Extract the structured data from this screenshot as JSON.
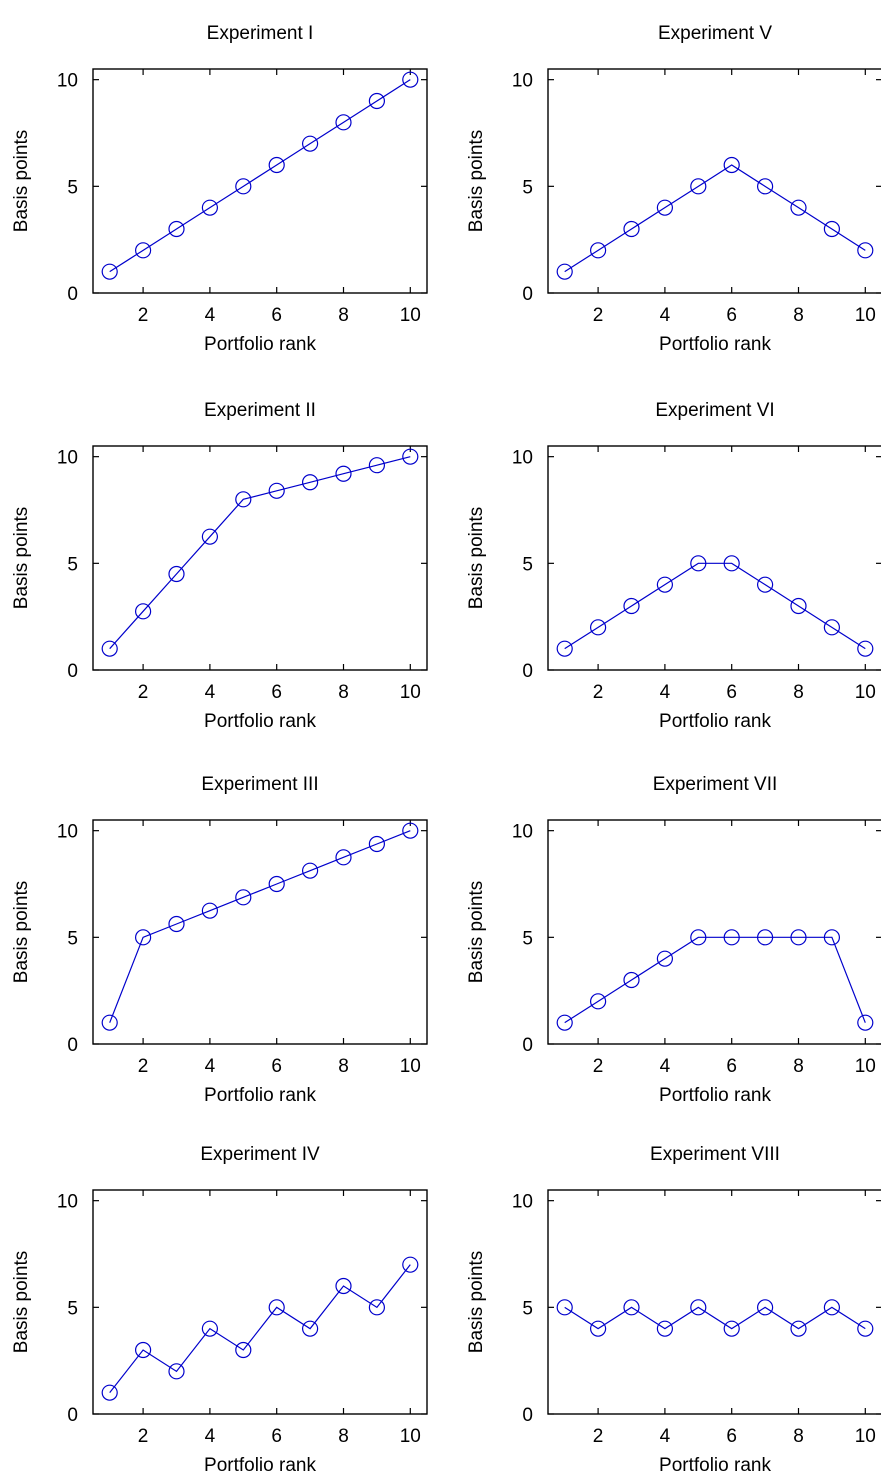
{
  "chart_data": [
    {
      "type": "line",
      "title": "Experiment I",
      "xlabel": "Portfolio rank",
      "ylabel": "Basis points",
      "xlim": [
        0.5,
        10.5
      ],
      "ylim": [
        0,
        10.5
      ],
      "xticks": [
        2,
        4,
        6,
        8,
        10
      ],
      "yticks": [
        0,
        5,
        10
      ],
      "x": [
        1,
        2,
        3,
        4,
        5,
        6,
        7,
        8,
        9,
        10
      ],
      "series": [
        {
          "values": [
            1,
            2,
            3,
            4,
            5,
            6,
            7,
            8,
            9,
            10
          ]
        }
      ]
    },
    {
      "type": "line",
      "title": "Experiment V",
      "xlabel": "Portfolio rank",
      "ylabel": "Basis points",
      "xlim": [
        0.5,
        10.5
      ],
      "ylim": [
        0,
        10.5
      ],
      "xticks": [
        2,
        4,
        6,
        8,
        10
      ],
      "yticks": [
        0,
        5,
        10
      ],
      "x": [
        1,
        2,
        3,
        4,
        5,
        6,
        7,
        8,
        9,
        10
      ],
      "series": [
        {
          "values": [
            1,
            2,
            3,
            4,
            5,
            6,
            5,
            4,
            3,
            2
          ]
        }
      ]
    },
    {
      "type": "line",
      "title": "Experiment II",
      "xlabel": "Portfolio rank",
      "ylabel": "Basis points",
      "xlim": [
        0.5,
        10.5
      ],
      "ylim": [
        0,
        10.5
      ],
      "xticks": [
        2,
        4,
        6,
        8,
        10
      ],
      "yticks": [
        0,
        5,
        10
      ],
      "x": [
        1,
        2,
        3,
        4,
        5,
        6,
        7,
        8,
        9,
        10
      ],
      "series": [
        {
          "values": [
            1,
            2.75,
            4.5,
            6.25,
            8,
            8.4,
            8.8,
            9.2,
            9.6,
            10
          ]
        }
      ]
    },
    {
      "type": "line",
      "title": "Experiment VI",
      "xlabel": "Portfolio rank",
      "ylabel": "Basis points",
      "xlim": [
        0.5,
        10.5
      ],
      "ylim": [
        0,
        10.5
      ],
      "xticks": [
        2,
        4,
        6,
        8,
        10
      ],
      "yticks": [
        0,
        5,
        10
      ],
      "x": [
        1,
        2,
        3,
        4,
        5,
        6,
        7,
        8,
        9,
        10
      ],
      "series": [
        {
          "values": [
            1,
            2,
            3,
            4,
            5,
            5,
            4,
            3,
            2,
            1
          ]
        }
      ]
    },
    {
      "type": "line",
      "title": "Experiment III",
      "xlabel": "Portfolio rank",
      "ylabel": "Basis points",
      "xlim": [
        0.5,
        10.5
      ],
      "ylim": [
        0,
        10.5
      ],
      "xticks": [
        2,
        4,
        6,
        8,
        10
      ],
      "yticks": [
        0,
        5,
        10
      ],
      "x": [
        1,
        2,
        3,
        4,
        5,
        6,
        7,
        8,
        9,
        10
      ],
      "series": [
        {
          "values": [
            1,
            5,
            5.625,
            6.25,
            6.875,
            7.5,
            8.125,
            8.75,
            9.375,
            10
          ]
        }
      ]
    },
    {
      "type": "line",
      "title": "Experiment VII",
      "xlabel": "Portfolio rank",
      "ylabel": "Basis points",
      "xlim": [
        0.5,
        10.5
      ],
      "ylim": [
        0,
        10.5
      ],
      "xticks": [
        2,
        4,
        6,
        8,
        10
      ],
      "yticks": [
        0,
        5,
        10
      ],
      "x": [
        1,
        2,
        3,
        4,
        5,
        6,
        7,
        8,
        9,
        10
      ],
      "series": [
        {
          "values": [
            1,
            2,
            3,
            4,
            5,
            5,
            5,
            5,
            5,
            1
          ]
        }
      ]
    },
    {
      "type": "line",
      "title": "Experiment IV",
      "xlabel": "Portfolio rank",
      "ylabel": "Basis points",
      "xlim": [
        0.5,
        10.5
      ],
      "ylim": [
        0,
        10.5
      ],
      "xticks": [
        2,
        4,
        6,
        8,
        10
      ],
      "yticks": [
        0,
        5,
        10
      ],
      "x": [
        1,
        2,
        3,
        4,
        5,
        6,
        7,
        8,
        9,
        10
      ],
      "series": [
        {
          "values": [
            1,
            3,
            2,
            4,
            3,
            5,
            4,
            6,
            5,
            7
          ]
        }
      ]
    },
    {
      "type": "line",
      "title": "Experiment VIII",
      "xlabel": "Portfolio rank",
      "ylabel": "Basis points",
      "xlim": [
        0.5,
        10.5
      ],
      "ylim": [
        0,
        10.5
      ],
      "xticks": [
        2,
        4,
        6,
        8,
        10
      ],
      "yticks": [
        0,
        5,
        10
      ],
      "x": [
        1,
        2,
        3,
        4,
        5,
        6,
        7,
        8,
        9,
        10
      ],
      "series": [
        {
          "values": [
            5,
            4,
            5,
            4,
            5,
            4,
            5,
            4,
            5,
            4
          ]
        }
      ]
    }
  ],
  "style": {
    "series_color": "#0000cc",
    "axis_color": "#000000",
    "background": "#ffffff"
  }
}
